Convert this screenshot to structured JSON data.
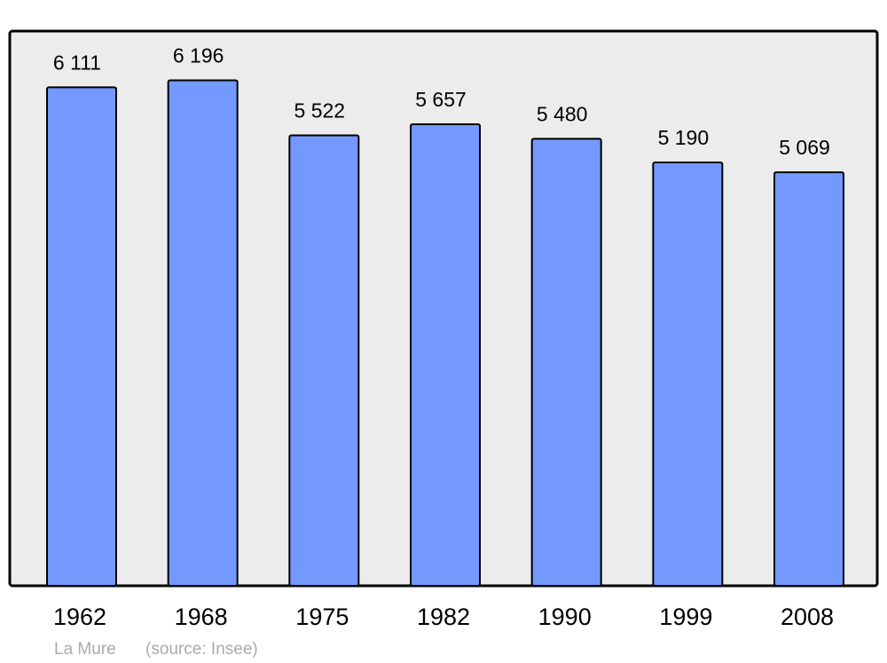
{
  "chart_data": {
    "type": "bar",
    "categories": [
      "1962",
      "1968",
      "1975",
      "1982",
      "1990",
      "1999",
      "2008"
    ],
    "values": [
      6111,
      6196,
      5522,
      5657,
      5480,
      5190,
      5069
    ],
    "value_labels": [
      "6 111",
      "6 196",
      "5 522",
      "5 657",
      "5 480",
      "5 190",
      "5 069"
    ],
    "color": "#7399ff",
    "ylim": [
      0,
      6800
    ],
    "place": "La Mure",
    "source": "(source: Insee)"
  }
}
